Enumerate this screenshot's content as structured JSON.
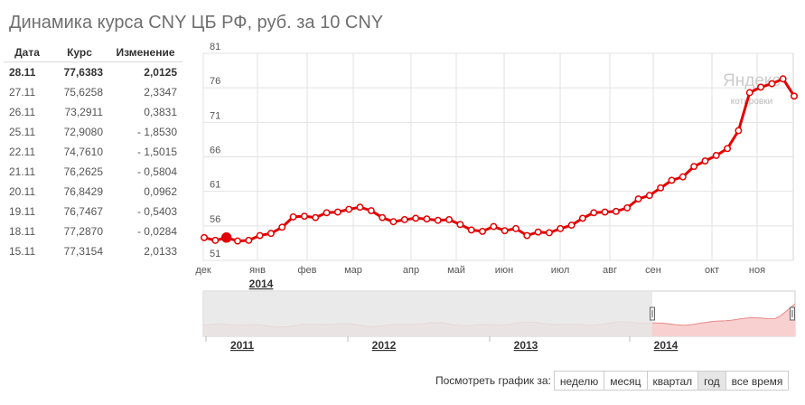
{
  "title": "Динамика курса CNY ЦБ РФ, руб. за 10 CNY",
  "table": {
    "headers": [
      "Дата",
      "Курс",
      "Изменение"
    ],
    "rows": [
      {
        "date": "28.11",
        "rate": "77,6383",
        "change": "2,0125"
      },
      {
        "date": "27.11",
        "rate": "75,6258",
        "change": "2,3347"
      },
      {
        "date": "26.11",
        "rate": "73,2911",
        "change": "0,3831"
      },
      {
        "date": "25.11",
        "rate": "72,9080",
        "change": "- 1,8530"
      },
      {
        "date": "22.11",
        "rate": "74,7610",
        "change": "- 1,5015"
      },
      {
        "date": "21.11",
        "rate": "76,2625",
        "change": "- 0,5804"
      },
      {
        "date": "20.11",
        "rate": "76,8429",
        "change": "0,0962"
      },
      {
        "date": "19.11",
        "rate": "76,7467",
        "change": "- 0,5403"
      },
      {
        "date": "18.11",
        "rate": "77,2870",
        "change": "- 0,0284"
      },
      {
        "date": "15.11",
        "rate": "77,3154",
        "change": "2,0133"
      }
    ]
  },
  "watermark": {
    "brand": "Яндекс",
    "sub": "котировки"
  },
  "colors": {
    "line": "#e30000",
    "grid": "#e2e2e2",
    "nav_fill": "#f8d0d0",
    "nav_line": "#e88a8a",
    "nav_shade": "#e6e6e6"
  },
  "chart_data": {
    "type": "line",
    "title": "Динамика курса CNY ЦБ РФ, руб. за 10 CNY",
    "ylim": [
      51,
      81
    ],
    "yticks": [
      81,
      76,
      71,
      66,
      61,
      56,
      51
    ],
    "grid": true,
    "month_ticks": [
      "дек",
      "янв",
      "фев",
      "мар",
      "апр",
      "май",
      "июн",
      "июл",
      "авг",
      "сен",
      "окт",
      "ноя"
    ],
    "year_label": "2014",
    "series": [
      {
        "values": [
          54.3,
          53.9,
          54.3,
          53.8,
          53.9,
          54.6,
          54.9,
          55.8,
          57.3,
          57.4,
          57.2,
          57.9,
          58.0,
          58.4,
          58.7,
          58.2,
          57.2,
          56.6,
          56.9,
          57.1,
          57.0,
          56.8,
          56.9,
          56.2,
          55.4,
          55.2,
          55.9,
          55.3,
          55.6,
          54.6,
          55.1,
          55.0,
          55.6,
          56.1,
          57.1,
          57.9,
          58.0,
          58.1,
          58.6,
          59.9,
          60.4,
          61.5,
          62.6,
          63.1,
          64.6,
          65.4,
          66.2,
          67.2,
          69.8,
          75.3,
          76.1,
          76.6,
          77.3,
          74.8
        ]
      }
    ],
    "navigator": {
      "years": [
        "2011",
        "2012",
        "2013",
        "2014"
      ]
    }
  },
  "period_selector": {
    "label": "Посмотреть график за:",
    "buttons": [
      "неделю",
      "месяц",
      "квартал",
      "год",
      "все время"
    ],
    "active": "год"
  }
}
